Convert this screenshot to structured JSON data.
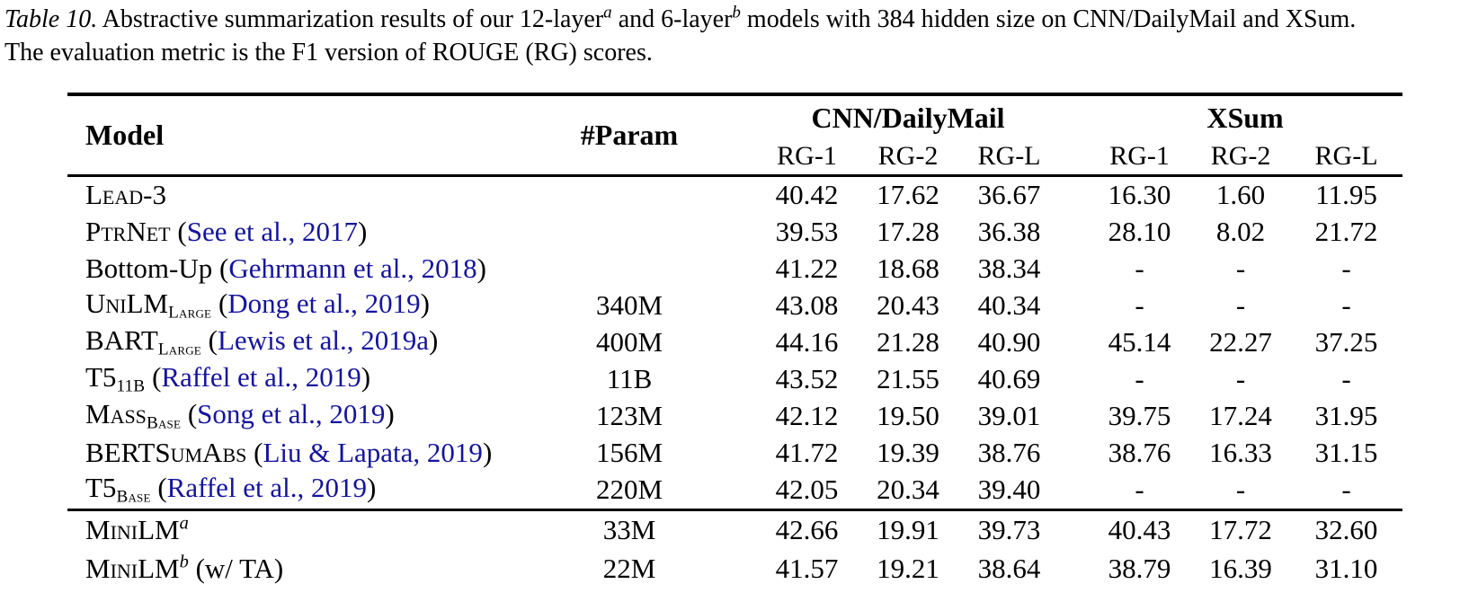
{
  "colors": {
    "citation": "#14149B",
    "text": "#000000",
    "rule": "#000000"
  },
  "caption": {
    "label": "Table 10.",
    "part1": "  Abstractive summarization results of our 12-layer",
    "sup1": "a",
    "part2": " and 6-layer",
    "sup2": "b",
    "part3": " models with 384 hidden size on CNN/DailyMail and XSum.",
    "part4": "The evaluation metric is the F1 version of ROUGE (RG) scores."
  },
  "table": {
    "header": {
      "model": "Model",
      "param": "#Param",
      "group1": "CNN/DailyMail",
      "group2": "XSum"
    },
    "metrics": [
      "RG-1",
      "RG-2",
      "RG-L"
    ],
    "groups": [
      {
        "rows": [
          {
            "name": "Lead-3",
            "sc": true,
            "sub": "",
            "sup": "",
            "cite": "",
            "after": "",
            "param": "",
            "vals": [
              "40.42",
              "17.62",
              "36.67",
              "16.30",
              "1.60",
              "11.95"
            ]
          },
          {
            "name": "PtrNet",
            "sc": true,
            "sub": "",
            "sup": "",
            "cite": "See et al., 2017",
            "after": "",
            "param": "",
            "vals": [
              "39.53",
              "17.28",
              "36.38",
              "28.10",
              "8.02",
              "21.72"
            ]
          },
          {
            "name": "Bottom-Up",
            "sc": false,
            "sub": "",
            "sup": "",
            "cite": "Gehrmann et al., 2018",
            "after": "",
            "param": "",
            "vals": [
              "41.22",
              "18.68",
              "38.34",
              "-",
              "-",
              "-"
            ]
          },
          {
            "name": "UniLM",
            "sc": true,
            "sub": "Large",
            "sup": "",
            "cite": "Dong et al., 2019",
            "after": "",
            "param": "340M",
            "vals": [
              "43.08",
              "20.43",
              "40.34",
              "-",
              "-",
              "-"
            ]
          },
          {
            "name": "BART",
            "sc": false,
            "sub": "Large",
            "sup": "",
            "cite": "Lewis et al., 2019a",
            "after": "",
            "param": "400M",
            "vals": [
              "44.16",
              "21.28",
              "40.90",
              "45.14",
              "22.27",
              "37.25"
            ]
          },
          {
            "name": "T5",
            "sc": false,
            "sub": "11B",
            "sup": "",
            "cite": "Raffel et al., 2019",
            "after": "",
            "param": "11B",
            "vals": [
              "43.52",
              "21.55",
              "40.69",
              "-",
              "-",
              "-"
            ]
          },
          {
            "name": "Mass",
            "sc": true,
            "sub": "Base",
            "sup": "",
            "cite": "Song et al., 2019",
            "after": "",
            "param": "123M",
            "vals": [
              "42.12",
              "19.50",
              "39.01",
              "39.75",
              "17.24",
              "31.95"
            ]
          },
          {
            "name": "BERTSumAbs",
            "sc": true,
            "sub": "",
            "sup": "",
            "cite": "Liu & Lapata, 2019",
            "after": "",
            "param": "156M",
            "vals": [
              "41.72",
              "19.39",
              "38.76",
              "38.76",
              "16.33",
              "31.15"
            ]
          },
          {
            "name": "T5",
            "sc": false,
            "sub": "Base",
            "sup": "",
            "cite": "Raffel et al., 2019",
            "after": "",
            "param": "220M",
            "vals": [
              "42.05",
              "20.34",
              "39.40",
              "-",
              "-",
              "-"
            ]
          }
        ]
      },
      {
        "rows": [
          {
            "name": "MiniLM",
            "sc": true,
            "sub": "",
            "sup": "a",
            "cite": "",
            "after": "",
            "param": "33M",
            "vals": [
              "42.66",
              "19.91",
              "39.73",
              "40.43",
              "17.72",
              "32.60"
            ]
          },
          {
            "name": "MiniLM",
            "sc": true,
            "sub": "",
            "sup": "b",
            "cite": "",
            "after": " (w/ TA)",
            "param": "22M",
            "vals": [
              "41.57",
              "19.21",
              "38.64",
              "38.79",
              "16.39",
              "31.10"
            ]
          }
        ]
      }
    ]
  }
}
